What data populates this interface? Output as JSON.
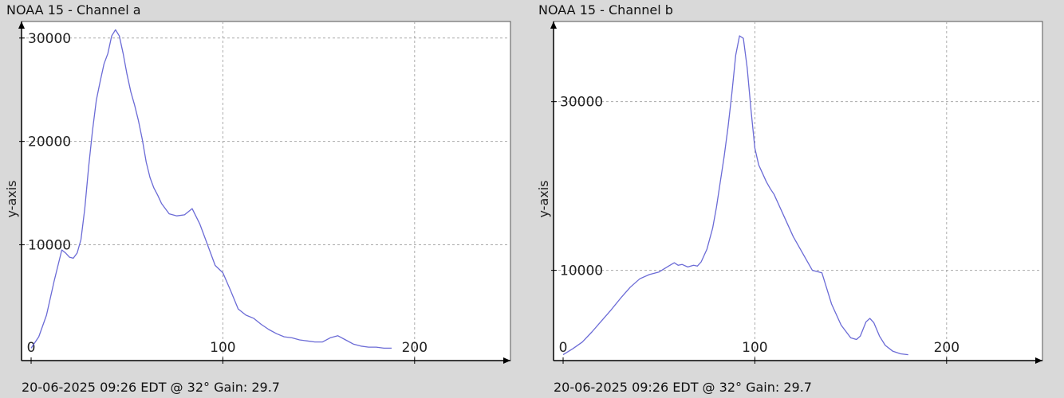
{
  "chart_data": [
    {
      "type": "line",
      "title": "NOAA 15 - Channel a",
      "footer": "20-06-2025 09:26 EDT @ 32° Gain: 29.7",
      "xlabel": "",
      "ylabel": "y-axis",
      "xlim": [
        -5,
        250
      ],
      "ylim": [
        -1200,
        31600
      ],
      "x_ticks": [
        0,
        100,
        200
      ],
      "y_ticks": [
        10000,
        20000,
        30000
      ],
      "grid": true,
      "line_color": "#6b6bd6",
      "series": [
        {
          "x": [
            0,
            4,
            8,
            12,
            16,
            18,
            20,
            22,
            24,
            26,
            28,
            30,
            32,
            34,
            36,
            38,
            40,
            42,
            44,
            46,
            48,
            50,
            52,
            54,
            56,
            58,
            60,
            62,
            64,
            66,
            68,
            70,
            72,
            76,
            80,
            84,
            88,
            92,
            96,
            100,
            104,
            108,
            112,
            116,
            120,
            124,
            128,
            132,
            136,
            140,
            144,
            148,
            152,
            156,
            160,
            164,
            168,
            172,
            176,
            180,
            184,
            188
          ],
          "y": [
            0,
            1100,
            3200,
            6500,
            9500,
            9200,
            8800,
            8700,
            9200,
            10500,
            13500,
            17500,
            21000,
            24000,
            25800,
            27500,
            28500,
            30200,
            30800,
            30200,
            28500,
            26500,
            24800,
            23500,
            22000,
            20200,
            18000,
            16500,
            15500,
            14800,
            14000,
            13500,
            13000,
            12800,
            12900,
            13500,
            12000,
            10000,
            8000,
            7300,
            5600,
            3800,
            3200,
            2900,
            2300,
            1800,
            1400,
            1100,
            1000,
            800,
            700,
            600,
            600,
            1000,
            1200,
            800,
            400,
            200,
            100,
            100,
            0,
            0
          ]
        }
      ]
    },
    {
      "type": "line",
      "title": "NOAA 15 - Channel b",
      "footer": "20-06-2025 09:26 EDT @ 32° Gain: 29.7",
      "xlabel": "",
      "ylabel": "y-axis",
      "xlim": [
        -5,
        250
      ],
      "ylim": [
        -700,
        39500
      ],
      "x_ticks": [
        0,
        100,
        200
      ],
      "y_ticks": [
        10000,
        30000
      ],
      "grid": true,
      "line_color": "#6b6bd6",
      "series": [
        {
          "x": [
            0,
            5,
            10,
            15,
            20,
            25,
            30,
            35,
            40,
            45,
            50,
            55,
            58,
            60,
            62,
            65,
            68,
            70,
            72,
            75,
            78,
            80,
            82,
            84,
            86,
            88,
            90,
            92,
            94,
            96,
            98,
            100,
            102,
            104,
            106,
            108,
            110,
            115,
            120,
            125,
            130,
            135,
            140,
            145,
            150,
            153,
            155,
            158,
            160,
            162,
            165,
            168,
            172,
            176,
            180
          ],
          "y": [
            0,
            700,
            1500,
            2700,
            4000,
            5300,
            6700,
            8000,
            9000,
            9500,
            9800,
            10500,
            10900,
            10600,
            10700,
            10400,
            10600,
            10500,
            11000,
            12500,
            15000,
            17500,
            20500,
            23500,
            27000,
            31000,
            35500,
            37800,
            37500,
            34000,
            29000,
            24500,
            22500,
            21500,
            20500,
            19700,
            19000,
            16500,
            14000,
            12000,
            10000,
            9700,
            6000,
            3500,
            2000,
            1800,
            2200,
            3900,
            4300,
            3800,
            2200,
            1100,
            400,
            100,
            0
          ]
        }
      ]
    }
  ]
}
